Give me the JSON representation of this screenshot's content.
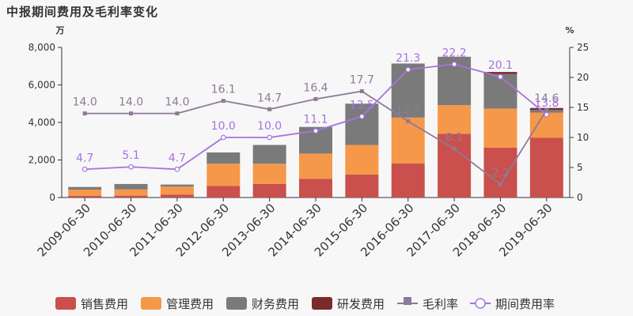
{
  "title": "中报期间费用及毛利率变化",
  "chart_data": {
    "type": "bar",
    "stacked": true,
    "categories": [
      "2009-06-30",
      "2010-06-30",
      "2011-06-30",
      "2012-06-30",
      "2013-06-30",
      "2014-06-30",
      "2015-06-30",
      "2016-06-30",
      "2017-06-30",
      "2018-06-30",
      "2019-06-30"
    ],
    "y_left": {
      "unit": "万",
      "range": [
        0,
        8000
      ],
      "ticks": [
        "0",
        "2,000",
        "4,000",
        "6,000",
        "8,000"
      ],
      "tick_values": [
        0,
        2000,
        4000,
        6000,
        8000
      ]
    },
    "y_right": {
      "unit": "%",
      "range": [
        0,
        25
      ],
      "ticks": [
        "0",
        "5",
        "10",
        "15",
        "20",
        "25"
      ],
      "tick_values": [
        0,
        5,
        10,
        15,
        20,
        25
      ]
    },
    "bar_series": [
      {
        "name": "销售费用",
        "color": "#c9504c",
        "values": [
          90,
          100,
          160,
          620,
          720,
          1000,
          1220,
          1820,
          3400,
          2660,
          3180
        ]
      },
      {
        "name": "管理费用",
        "color": "#f5984a",
        "values": [
          330,
          330,
          420,
          1180,
          1080,
          1340,
          1580,
          2440,
          1520,
          2080,
          1340
        ]
      },
      {
        "name": "财务费用",
        "color": "#7a7a7a",
        "values": [
          140,
          290,
          110,
          600,
          1000,
          1420,
          2200,
          2880,
          2580,
          1850,
          150
        ]
      },
      {
        "name": "研发费用",
        "color": "#7b2a2a",
        "values": [
          0,
          0,
          0,
          0,
          0,
          0,
          0,
          0,
          0,
          100,
          100
        ]
      }
    ],
    "line_series": [
      {
        "name": "毛利率",
        "color": "#8e7a96",
        "marker": "square",
        "axis": "right",
        "values": [
          14.0,
          14.0,
          14.0,
          16.1,
          14.7,
          16.4,
          17.7,
          12.7,
          8.1,
          2.2,
          14.6
        ],
        "labels": [
          "14.0",
          "14.0",
          "14.0",
          "16.1",
          "14.7",
          "16.4",
          "17.7",
          "12.7",
          "8.1",
          "2.2",
          "14.6"
        ]
      },
      {
        "name": "期间费用率",
        "color": "#a872e0",
        "marker": "circle",
        "axis": "right",
        "values": [
          4.7,
          5.1,
          4.7,
          10.0,
          10.0,
          11.1,
          13.5,
          21.3,
          22.2,
          20.1,
          13.8
        ],
        "labels": [
          "4.7",
          "5.1",
          "4.7",
          "10.0",
          "10.0",
          "11.1",
          "13.5",
          "21.3",
          "22.2",
          "20.1",
          "13.8"
        ]
      }
    ],
    "legend": [
      "销售费用",
      "管理费用",
      "财务费用",
      "研发费用",
      "毛利率",
      "期间费用率"
    ],
    "legend_position": "bottom",
    "grid": false
  }
}
